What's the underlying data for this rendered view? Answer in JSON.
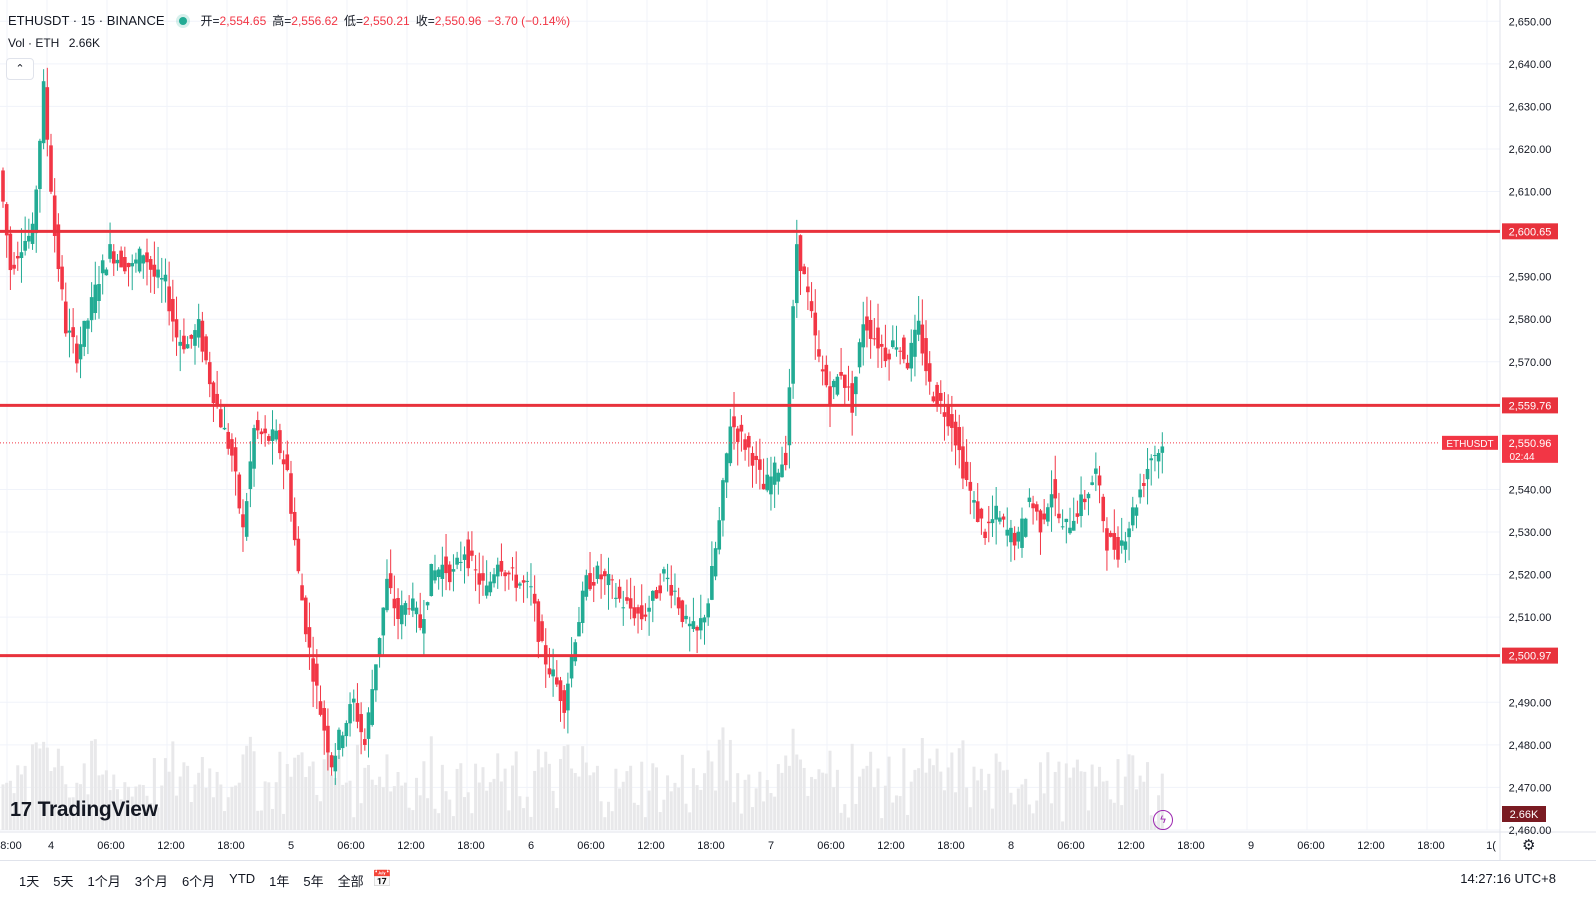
{
  "header": {
    "symbol": "ETHUSDT · 15 · BINANCE",
    "open_label": "开=",
    "open_value": "2,554.65",
    "high_label": "高=",
    "high_value": "2,556.62",
    "low_label": "低=",
    "low_value": "2,550.21",
    "close_label": "收=",
    "close_value": "2,550.96",
    "change": "−3.70 (−0.14%)"
  },
  "volume": {
    "label": "Vol · ETH",
    "value": "2.66K"
  },
  "logo": {
    "text": "TradingView",
    "mark": "17"
  },
  "collapse_icon": "chevron-up-icon",
  "ranges": [
    "1天",
    "5天",
    "1个月",
    "3个月",
    "6个月",
    "YTD",
    "1年",
    "5年",
    "全部"
  ],
  "clock": "14:27:16 UTC+8",
  "colors": {
    "up": "#22ab94",
    "down": "#f23645",
    "level": "#e8323c",
    "volume": "#e8e8ea"
  },
  "chart_data": {
    "type": "candlestick",
    "symbol": "ETHUSDT",
    "price_axis": {
      "ylim": [
        2460,
        2655
      ],
      "ticks": [
        "2,650.00",
        "2,640.00",
        "2,630.00",
        "2,620.00",
        "2,610.00",
        "2,590.00",
        "2,580.00",
        "2,570.00",
        "2,540.00",
        "2,530.00",
        "2,520.00",
        "2,510.00",
        "2,490.00",
        "2,480.00",
        "2,470.00",
        "2,460.00"
      ],
      "tick_values": [
        2650,
        2640,
        2630,
        2620,
        2610,
        2590,
        2580,
        2570,
        2540,
        2530,
        2520,
        2510,
        2490,
        2480,
        2470,
        2460
      ]
    },
    "time_axis": {
      "labels": [
        "8:00",
        "4",
        "06:00",
        "12:00",
        "18:00",
        "5",
        "06:00",
        "12:00",
        "18:00",
        "6",
        "06:00",
        "12:00",
        "18:00",
        "7",
        "06:00",
        "12:00",
        "18:00",
        "8",
        "06:00",
        "12:00",
        "18:00",
        "9",
        "06:00",
        "12:00",
        "18:00",
        "1("
      ],
      "positions_index": [
        0,
        4,
        10,
        16,
        22,
        28,
        34,
        40,
        46,
        52,
        58,
        64,
        70,
        76,
        82,
        88,
        94,
        100,
        106,
        112,
        118,
        124,
        130,
        136,
        142,
        148
      ]
    },
    "levels": [
      {
        "value": 2600.65,
        "label": "2,600.65"
      },
      {
        "value": 2559.76,
        "label": "2,559.76"
      },
      {
        "value": 2500.97,
        "label": "2,500.97"
      }
    ],
    "last_price": {
      "value": 2550.96,
      "label": "2,550.96",
      "symbol_tag": "ETHUSDT",
      "countdown": "02:44"
    },
    "volume_last": "2.66K",
    "path": [
      [
        0,
        2615
      ],
      [
        1,
        2592
      ],
      [
        2,
        2598
      ],
      [
        3,
        2600
      ],
      [
        4,
        2634
      ],
      [
        5,
        2600
      ],
      [
        6,
        2578
      ],
      [
        7,
        2572
      ],
      [
        8,
        2580
      ],
      [
        9,
        2590
      ],
      [
        10,
        2596
      ],
      [
        11,
        2594
      ],
      [
        12,
        2592
      ],
      [
        13,
        2596
      ],
      [
        14,
        2590
      ],
      [
        15,
        2588
      ],
      [
        16,
        2576
      ],
      [
        17,
        2574
      ],
      [
        18,
        2578
      ],
      [
        19,
        2566
      ],
      [
        20,
        2556
      ],
      [
        21,
        2548
      ],
      [
        22,
        2530
      ],
      [
        23,
        2554
      ],
      [
        24,
        2552
      ],
      [
        25,
        2552
      ],
      [
        26,
        2544
      ],
      [
        27,
        2520
      ],
      [
        28,
        2502
      ],
      [
        29,
        2488
      ],
      [
        30,
        2476
      ],
      [
        31,
        2484
      ],
      [
        32,
        2490
      ],
      [
        33,
        2480
      ],
      [
        34,
        2500
      ],
      [
        35,
        2518
      ],
      [
        36,
        2510
      ],
      [
        37,
        2514
      ],
      [
        38,
        2508
      ],
      [
        39,
        2520
      ],
      [
        40,
        2522
      ],
      [
        41,
        2520
      ],
      [
        42,
        2526
      ],
      [
        43,
        2520
      ],
      [
        44,
        2516
      ],
      [
        45,
        2524
      ],
      [
        46,
        2520
      ],
      [
        47,
        2518
      ],
      [
        48,
        2516
      ],
      [
        49,
        2502
      ],
      [
        50,
        2496
      ],
      [
        51,
        2490
      ],
      [
        52,
        2506
      ],
      [
        53,
        2518
      ],
      [
        54,
        2520
      ],
      [
        55,
        2518
      ],
      [
        56,
        2514
      ],
      [
        57,
        2512
      ],
      [
        58,
        2510
      ],
      [
        59,
        2514
      ],
      [
        60,
        2520
      ],
      [
        61,
        2516
      ],
      [
        62,
        2508
      ],
      [
        63,
        2506
      ],
      [
        64,
        2514
      ],
      [
        65,
        2532
      ],
      [
        66,
        2556
      ],
      [
        67,
        2552
      ],
      [
        68,
        2548
      ],
      [
        69,
        2540
      ],
      [
        70,
        2544
      ],
      [
        71,
        2548
      ],
      [
        72,
        2598
      ],
      [
        73,
        2585
      ],
      [
        74,
        2570
      ],
      [
        75,
        2562
      ],
      [
        76,
        2568
      ],
      [
        77,
        2560
      ],
      [
        78,
        2580
      ],
      [
        79,
        2576
      ],
      [
        80,
        2572
      ],
      [
        81,
        2575
      ],
      [
        82,
        2570
      ],
      [
        83,
        2578
      ],
      [
        84,
        2564
      ],
      [
        85,
        2560
      ],
      [
        86,
        2556
      ],
      [
        87,
        2545
      ],
      [
        88,
        2536
      ],
      [
        89,
        2530
      ],
      [
        90,
        2534
      ],
      [
        91,
        2530
      ],
      [
        92,
        2528
      ],
      [
        93,
        2538
      ],
      [
        94,
        2532
      ],
      [
        95,
        2540
      ],
      [
        96,
        2530
      ],
      [
        97,
        2534
      ],
      [
        98,
        2538
      ],
      [
        99,
        2544
      ],
      [
        100,
        2528
      ],
      [
        101,
        2526
      ],
      [
        102,
        2532
      ],
      [
        103,
        2540
      ],
      [
        104,
        2548
      ],
      [
        105,
        2550
      ]
    ]
  }
}
